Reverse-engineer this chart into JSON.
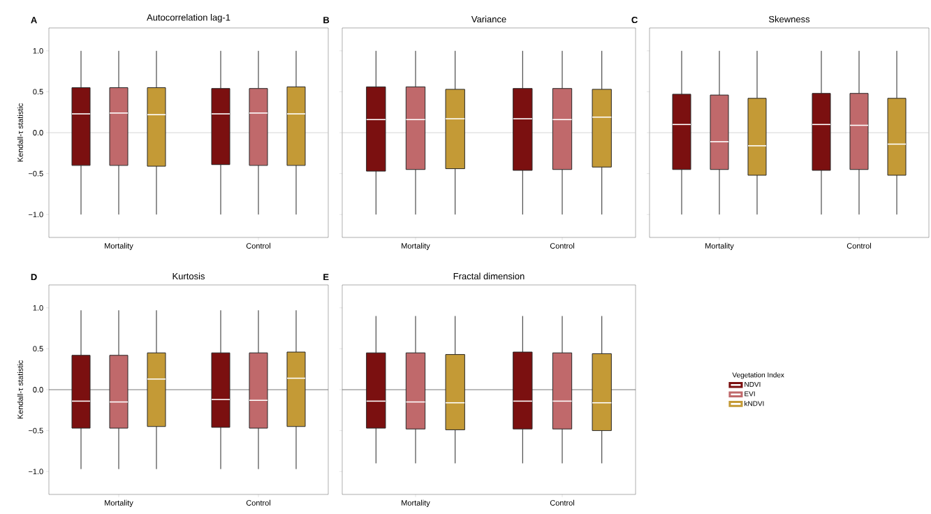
{
  "chart_data": [
    {
      "type": "box",
      "title": "Autocorrelation lag-1",
      "ylabel": "Kendall-τ statistic",
      "annotations": [
        "A"
      ],
      "categories": [
        "Mortality",
        "Control"
      ],
      "ylim": [
        -1.28,
        1.28
      ],
      "yticks": [
        {
          "value": -1.0,
          "label": "−1.0"
        },
        {
          "value": -0.5,
          "label": "−0.5"
        },
        {
          "value": 0.0,
          "label": "0.0"
        },
        {
          "value": 0.5,
          "label": "0.5"
        },
        {
          "value": 1.0,
          "label": "1.0"
        }
      ],
      "ref_lines": [
        {
          "axis": "y",
          "value": 0,
          "color": "#cccccc"
        }
      ],
      "series": [
        {
          "color": "#7b1010",
          "boxes": [
            {
              "low": -1.0,
              "q1": -0.4,
              "median": 0.23,
              "q3": 0.55,
              "high": 1.0
            },
            {
              "low": -1.0,
              "q1": -0.39,
              "median": 0.23,
              "q3": 0.54,
              "high": 1.0
            }
          ]
        },
        {
          "color": "#c0696b",
          "boxes": [
            {
              "low": -1.0,
              "q1": -0.4,
              "median": 0.24,
              "q3": 0.55,
              "high": 1.0
            },
            {
              "low": -1.0,
              "q1": -0.4,
              "median": 0.24,
              "q3": 0.54,
              "high": 1.0
            }
          ]
        },
        {
          "color": "#c49a36",
          "boxes": [
            {
              "low": -1.0,
              "q1": -0.41,
              "median": 0.22,
              "q3": 0.55,
              "high": 1.0
            },
            {
              "low": -1.0,
              "q1": -0.4,
              "median": 0.23,
              "q3": 0.56,
              "high": 1.0
            }
          ]
        }
      ]
    },
    {
      "type": "box",
      "title": "Variance",
      "annotations": [
        "B"
      ],
      "categories": [
        "Mortality",
        "Control"
      ],
      "ylim": [
        -1.28,
        1.28
      ],
      "yticks": [
        {
          "value": -1.0,
          "label": null
        },
        {
          "value": -0.5,
          "label": null
        },
        {
          "value": 0.0,
          "label": null
        },
        {
          "value": 0.5,
          "label": null
        },
        {
          "value": 1.0,
          "label": null
        }
      ],
      "tick_labels": "x",
      "ref_lines": [
        {
          "axis": "y",
          "value": 0,
          "color": "#cccccc"
        }
      ],
      "series": [
        {
          "color": "#7b1010",
          "boxes": [
            {
              "low": -1.0,
              "q1": -0.47,
              "median": 0.16,
              "q3": 0.56,
              "high": 1.0
            },
            {
              "low": -1.0,
              "q1": -0.46,
              "median": 0.17,
              "q3": 0.54,
              "high": 1.0
            }
          ]
        },
        {
          "color": "#c0696b",
          "boxes": [
            {
              "low": -1.0,
              "q1": -0.45,
              "median": 0.16,
              "q3": 0.56,
              "high": 1.0
            },
            {
              "low": -1.0,
              "q1": -0.45,
              "median": 0.16,
              "q3": 0.54,
              "high": 1.0
            }
          ]
        },
        {
          "color": "#c49a36",
          "boxes": [
            {
              "low": -1.0,
              "q1": -0.44,
              "median": 0.17,
              "q3": 0.53,
              "high": 1.0
            },
            {
              "low": -1.0,
              "q1": -0.42,
              "median": 0.19,
              "q3": 0.53,
              "high": 1.0
            }
          ]
        }
      ]
    },
    {
      "type": "box",
      "title": "Skewness",
      "annotations": [
        "C"
      ],
      "categories": [
        "Mortality",
        "Control"
      ],
      "ylim": [
        -1.28,
        1.28
      ],
      "yticks": [
        {
          "value": -1.0,
          "label": null
        },
        {
          "value": -0.5,
          "label": null
        },
        {
          "value": 0.0,
          "label": null
        },
        {
          "value": 0.5,
          "label": null
        },
        {
          "value": 1.0,
          "label": null
        }
      ],
      "tick_labels": "x",
      "ref_lines": [
        {
          "axis": "y",
          "value": 0,
          "color": "#cccccc"
        }
      ],
      "series": [
        {
          "color": "#7b1010",
          "boxes": [
            {
              "low": -1.0,
              "q1": -0.45,
              "median": 0.1,
              "q3": 0.47,
              "high": 1.0
            },
            {
              "low": -1.0,
              "q1": -0.46,
              "median": 0.1,
              "q3": 0.48,
              "high": 1.0
            }
          ]
        },
        {
          "color": "#c0696b",
          "boxes": [
            {
              "low": -1.0,
              "q1": -0.45,
              "median": -0.11,
              "q3": 0.46,
              "high": 1.0
            },
            {
              "low": -1.0,
              "q1": -0.45,
              "median": 0.09,
              "q3": 0.48,
              "high": 1.0
            }
          ]
        },
        {
          "color": "#c49a36",
          "boxes": [
            {
              "low": -1.0,
              "q1": -0.52,
              "median": -0.16,
              "q3": 0.42,
              "high": 1.0
            },
            {
              "low": -1.0,
              "q1": -0.52,
              "median": -0.14,
              "q3": 0.42,
              "high": 1.0
            }
          ]
        }
      ]
    },
    {
      "type": "box",
      "title": "Kurtosis",
      "ylabel": "Kendall-τ statistic",
      "annotations": [
        "D"
      ],
      "categories": [
        "Mortality",
        "Control"
      ],
      "ylim": [
        -1.28,
        1.28
      ],
      "yticks": [
        {
          "value": -1.0,
          "label": "−1.0"
        },
        {
          "value": -0.5,
          "label": "−0.5"
        },
        {
          "value": 0.0,
          "label": "0.0"
        },
        {
          "value": 0.5,
          "label": "0.5"
        },
        {
          "value": 1.0,
          "label": "1.0"
        }
      ],
      "ref_lines": [
        {
          "axis": "y",
          "value": 0,
          "color": "#555555"
        }
      ],
      "series": [
        {
          "color": "#7b1010",
          "boxes": [
            {
              "low": -0.97,
              "q1": -0.47,
              "median": -0.14,
              "q3": 0.42,
              "high": 0.97
            },
            {
              "low": -0.97,
              "q1": -0.46,
              "median": -0.12,
              "q3": 0.45,
              "high": 0.97
            }
          ]
        },
        {
          "color": "#c0696b",
          "boxes": [
            {
              "low": -0.97,
              "q1": -0.47,
              "median": -0.15,
              "q3": 0.42,
              "high": 0.97
            },
            {
              "low": -0.97,
              "q1": -0.47,
              "median": -0.13,
              "q3": 0.45,
              "high": 0.97
            }
          ]
        },
        {
          "color": "#c49a36",
          "boxes": [
            {
              "low": -0.97,
              "q1": -0.45,
              "median": 0.13,
              "q3": 0.45,
              "high": 0.97
            },
            {
              "low": -0.97,
              "q1": -0.45,
              "median": 0.14,
              "q3": 0.46,
              "high": 0.97
            }
          ]
        }
      ]
    },
    {
      "type": "box",
      "title": "Fractal dimension",
      "annotations": [
        "E"
      ],
      "categories": [
        "Mortality",
        "Control"
      ],
      "ylim": [
        -1.28,
        1.28
      ],
      "yticks": [
        {
          "value": -1.0,
          "label": null
        },
        {
          "value": -0.5,
          "label": null
        },
        {
          "value": 0.0,
          "label": null
        },
        {
          "value": 0.5,
          "label": null
        },
        {
          "value": 1.0,
          "label": null
        }
      ],
      "tick_labels": "x",
      "ref_lines": [
        {
          "axis": "y",
          "value": 0,
          "color": "#555555"
        }
      ],
      "legend": "right",
      "legend_title": "Vegetation Index",
      "series": [
        {
          "name": "NDVI",
          "color": "#7b1010",
          "boxes": [
            {
              "low": -0.9,
              "q1": -0.47,
              "median": -0.14,
              "q3": 0.45,
              "high": 0.9
            },
            {
              "low": -0.9,
              "q1": -0.48,
              "median": -0.14,
              "q3": 0.46,
              "high": 0.9
            }
          ]
        },
        {
          "name": "EVI",
          "color": "#c0696b",
          "boxes": [
            {
              "low": -0.9,
              "q1": -0.48,
              "median": -0.15,
              "q3": 0.45,
              "high": 0.9
            },
            {
              "low": -0.9,
              "q1": -0.48,
              "median": -0.14,
              "q3": 0.45,
              "high": 0.9
            }
          ]
        },
        {
          "name": "kNDVI",
          "color": "#c49a36",
          "boxes": [
            {
              "low": -0.9,
              "q1": -0.49,
              "median": -0.16,
              "q3": 0.43,
              "high": 0.9
            },
            {
              "low": -0.9,
              "q1": -0.5,
              "median": -0.16,
              "q3": 0.44,
              "high": 0.9
            }
          ]
        }
      ]
    }
  ]
}
